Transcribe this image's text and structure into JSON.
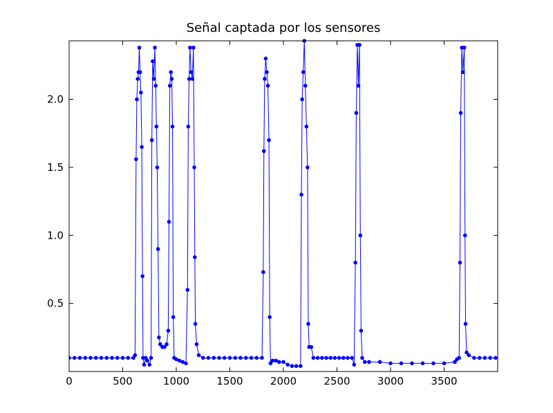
{
  "chart_data": {
    "type": "line",
    "title": "Señal captada por los sensores",
    "x": [
      0,
      50,
      100,
      150,
      200,
      250,
      300,
      350,
      400,
      450,
      500,
      550,
      600,
      615,
      625,
      632,
      640,
      648,
      655,
      662,
      670,
      678,
      685,
      690,
      700,
      715,
      730,
      750,
      765,
      772,
      780,
      790,
      800,
      808,
      815,
      822,
      830,
      838,
      850,
      870,
      890,
      910,
      925,
      932,
      940,
      950,
      958,
      965,
      972,
      980,
      1000,
      1030,
      1060,
      1090,
      1105,
      1112,
      1120,
      1128,
      1138,
      1150,
      1160,
      1168,
      1173,
      1178,
      1190,
      1210,
      1250,
      1300,
      1350,
      1400,
      1450,
      1500,
      1550,
      1600,
      1650,
      1700,
      1750,
      1800,
      1812,
      1818,
      1825,
      1835,
      1845,
      1855,
      1865,
      1872,
      1880,
      1900,
      1930,
      1960,
      2000,
      2040,
      2080,
      2120,
      2160,
      2168,
      2175,
      2185,
      2195,
      2205,
      2215,
      2225,
      2232,
      2240,
      2260,
      2280,
      2320,
      2360,
      2400,
      2440,
      2480,
      2520,
      2560,
      2600,
      2640,
      2660,
      2672,
      2680,
      2690,
      2700,
      2710,
      2718,
      2725,
      2735,
      2760,
      2800,
      2900,
      3000,
      3100,
      3200,
      3300,
      3400,
      3500,
      3600,
      3620,
      3640,
      3648,
      3655,
      3665,
      3675,
      3688,
      3695,
      3700,
      3710,
      3730,
      3780,
      3830,
      3880,
      3930,
      3980
    ],
    "series": [
      {
        "color": "#0000ff",
        "values": [
          0.1,
          0.1,
          0.1,
          0.1,
          0.1,
          0.1,
          0.1,
          0.1,
          0.1,
          0.1,
          0.1,
          0.1,
          0.1,
          0.12,
          1.56,
          2.0,
          2.15,
          2.2,
          2.38,
          2.2,
          2.05,
          1.65,
          0.7,
          0.1,
          0.05,
          0.1,
          0.08,
          0.05,
          0.1,
          1.7,
          2.28,
          2.15,
          2.38,
          2.1,
          1.8,
          1.5,
          0.9,
          0.25,
          0.2,
          0.18,
          0.18,
          0.2,
          0.3,
          1.1,
          2.1,
          2.2,
          2.15,
          1.8,
          0.4,
          0.1,
          0.09,
          0.08,
          0.07,
          0.06,
          0.6,
          1.8,
          2.15,
          2.38,
          2.2,
          2.15,
          2.38,
          1.5,
          0.84,
          0.35,
          0.2,
          0.12,
          0.1,
          0.1,
          0.1,
          0.1,
          0.1,
          0.1,
          0.1,
          0.1,
          0.1,
          0.1,
          0.1,
          0.1,
          0.73,
          1.62,
          2.15,
          2.3,
          2.2,
          2.1,
          1.7,
          0.4,
          0.06,
          0.08,
          0.08,
          0.07,
          0.07,
          0.05,
          0.04,
          0.04,
          0.04,
          1.3,
          2.0,
          2.2,
          2.43,
          2.1,
          1.8,
          1.5,
          0.35,
          0.18,
          0.18,
          0.1,
          0.1,
          0.1,
          0.1,
          0.1,
          0.1,
          0.1,
          0.1,
          0.1,
          0.1,
          0.05,
          0.8,
          1.9,
          2.4,
          2.1,
          2.4,
          1.0,
          0.3,
          0.1,
          0.07,
          0.07,
          0.07,
          0.06,
          0.06,
          0.06,
          0.06,
          0.06,
          0.06,
          0.07,
          0.09,
          0.1,
          0.8,
          1.9,
          2.38,
          2.2,
          2.38,
          1.0,
          0.35,
          0.14,
          0.12,
          0.1,
          0.1,
          0.1,
          0.1,
          0.1
        ]
      }
    ],
    "xlim": [
      0,
      4000
    ],
    "xticks": [
      0,
      500,
      1000,
      1500,
      2000,
      2500,
      3000,
      3500
    ],
    "ylim": [
      0,
      2.43
    ],
    "yticks": [
      0.5,
      {
        "value": 1.0,
        "label": "1.0"
      },
      1.5,
      {
        "value": 2.0,
        "label": "2.0"
      }
    ]
  }
}
